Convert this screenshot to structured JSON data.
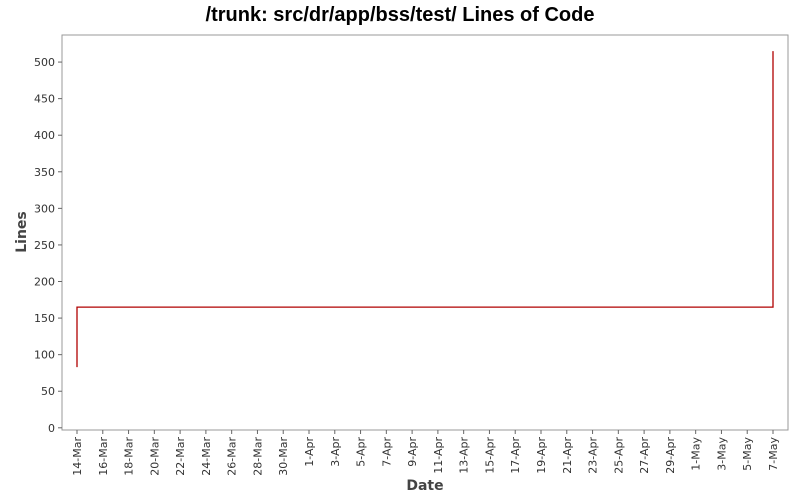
{
  "chart_data": {
    "type": "line",
    "title": "/trunk: src/dr/app/bss/test/ Lines of Code",
    "x_label": "Date",
    "y_label": "Lines",
    "xticks": [
      "14-Mar",
      "16-Mar",
      "18-Mar",
      "20-Mar",
      "22-Mar",
      "24-Mar",
      "26-Mar",
      "28-Mar",
      "30-Mar",
      "1-Apr",
      "3-Apr",
      "5-Apr",
      "7-Apr",
      "9-Apr",
      "11-Apr",
      "13-Apr",
      "15-Apr",
      "17-Apr",
      "19-Apr",
      "21-Apr",
      "23-Apr",
      "25-Apr",
      "27-Apr",
      "29-Apr",
      "1-May",
      "3-May",
      "5-May",
      "7-May"
    ],
    "x": [
      "14-Mar",
      "14-Mar",
      "14-Mar",
      "7-May",
      "7-May",
      "7-May"
    ],
    "values": [
      83,
      148,
      165,
      165,
      510,
      515
    ],
    "color": "#b00000",
    "ylim": [
      -3,
      537
    ],
    "yticks": [
      0,
      50,
      100,
      150,
      200,
      250,
      300,
      350,
      400,
      450,
      500
    ],
    "grid": false
  }
}
